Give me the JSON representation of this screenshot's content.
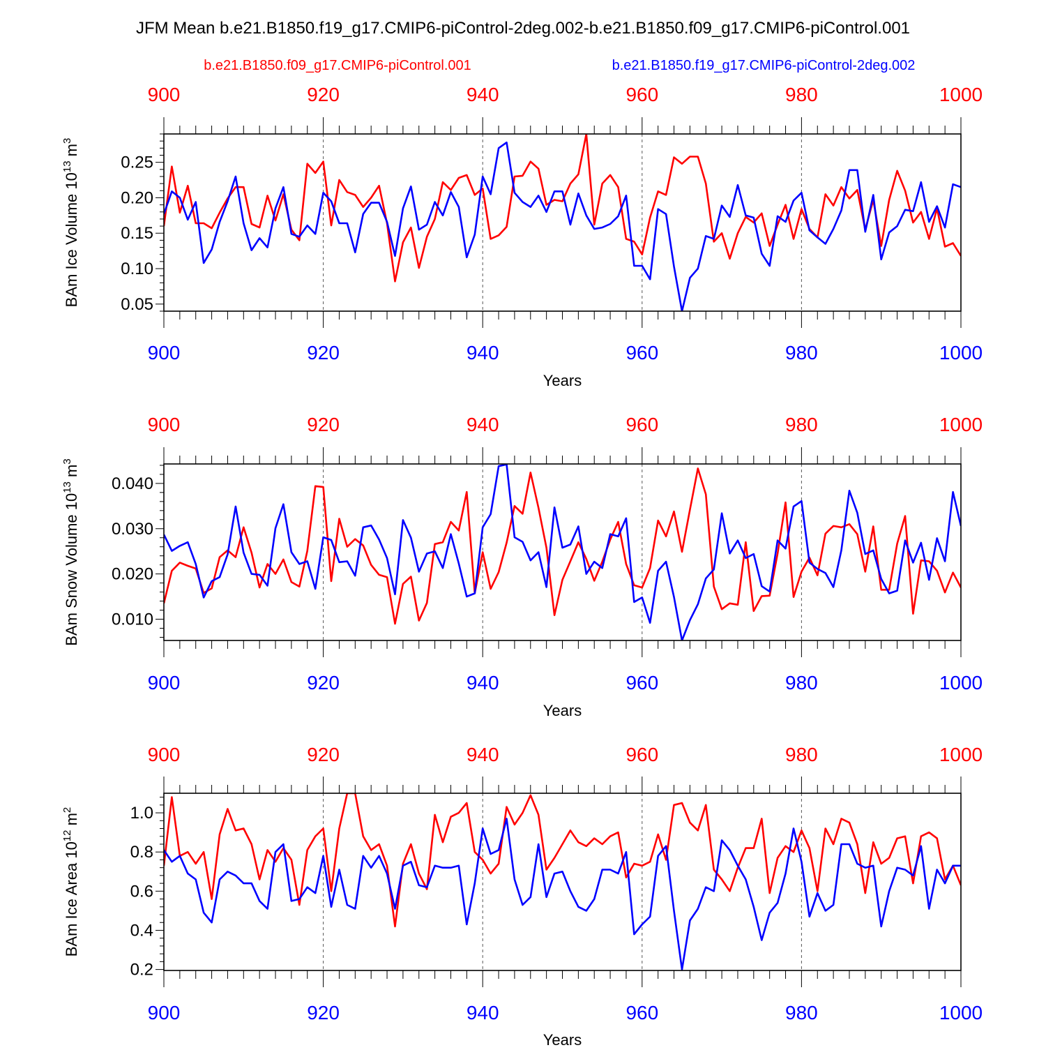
{
  "title": "JFM Mean b.e21.B1850.f19_g17.CMIP6-piControl-2deg.002-b.e21.B1850.f09_g17.CMIP6-piControl.001",
  "legend": {
    "red": "b.e21.B1850.f09_g17.CMIP6-piControl.001",
    "blue": "b.e21.B1850.f19_g17.CMIP6-piControl-2deg.002"
  },
  "colors": {
    "red": "#ff0000",
    "blue": "#0000ff",
    "axis": "#000000",
    "grid": "#555555"
  },
  "chart_data": [
    {
      "type": "line",
      "ylabel": "BAm Ice Volume",
      "units": "10^13 m^3",
      "ylabel_unit_base": "10",
      "ylabel_unit_exp": "13",
      "ylabel_unit_name": "m",
      "ylabel_unit_pow": "3",
      "xlabel": "Years",
      "xlim": [
        900,
        1000
      ],
      "ylim": [
        0.04,
        0.29
      ],
      "yticks": [
        0.05,
        0.1,
        0.15,
        0.2,
        0.25
      ],
      "ytick_labels": [
        "0.05",
        "0.10",
        "0.15",
        "0.20",
        "0.25"
      ],
      "xticks": [
        900,
        920,
        940,
        960,
        980,
        1000
      ],
      "xtick_labels": [
        "900",
        "920",
        "940",
        "960",
        "980",
        "1000"
      ],
      "x_start": 900,
      "series": [
        {
          "name": "b.e21.B1850.f09_g17.CMIP6-piControl.001",
          "color": "red",
          "values": [
            0.16,
            0.244,
            0.179,
            0.217,
            0.164,
            0.164,
            0.157,
            0.179,
            0.199,
            0.215,
            0.215,
            0.163,
            0.158,
            0.203,
            0.168,
            0.205,
            0.155,
            0.14,
            0.248,
            0.235,
            0.251,
            0.161,
            0.225,
            0.208,
            0.204,
            0.187,
            0.2,
            0.217,
            0.164,
            0.082,
            0.137,
            0.158,
            0.101,
            0.145,
            0.17,
            0.222,
            0.211,
            0.228,
            0.232,
            0.204,
            0.213,
            0.142,
            0.147,
            0.159,
            0.23,
            0.231,
            0.251,
            0.241,
            0.19,
            0.197,
            0.195,
            0.22,
            0.233,
            0.29,
            0.162,
            0.22,
            0.232,
            0.215,
            0.142,
            0.138,
            0.12,
            0.172,
            0.209,
            0.204,
            0.257,
            0.248,
            0.258,
            0.258,
            0.22,
            0.138,
            0.15,
            0.114,
            0.15,
            0.173,
            0.165,
            0.178,
            0.132,
            0.162,
            0.19,
            0.142,
            0.184,
            0.156,
            0.144,
            0.205,
            0.189,
            0.215,
            0.199,
            0.211,
            0.155,
            0.197,
            0.132,
            0.197,
            0.238,
            0.21,
            0.165,
            0.18,
            0.142,
            0.185,
            0.131,
            0.136,
            0.118
          ]
        },
        {
          "name": "b.e21.B1850.f19_g17.CMIP6-piControl-2deg.002",
          "color": "blue",
          "values": [
            0.177,
            0.209,
            0.2,
            0.169,
            0.194,
            0.108,
            0.127,
            0.166,
            0.195,
            0.23,
            0.164,
            0.126,
            0.143,
            0.13,
            0.185,
            0.215,
            0.149,
            0.145,
            0.161,
            0.149,
            0.207,
            0.195,
            0.164,
            0.164,
            0.123,
            0.177,
            0.193,
            0.193,
            0.166,
            0.118,
            0.185,
            0.216,
            0.155,
            0.162,
            0.194,
            0.175,
            0.208,
            0.187,
            0.116,
            0.148,
            0.23,
            0.205,
            0.27,
            0.278,
            0.207,
            0.194,
            0.187,
            0.203,
            0.18,
            0.209,
            0.209,
            0.162,
            0.206,
            0.175,
            0.156,
            0.158,
            0.163,
            0.174,
            0.203,
            0.104,
            0.104,
            0.085,
            0.184,
            0.177,
            0.103,
            0.04,
            0.087,
            0.1,
            0.146,
            0.142,
            0.189,
            0.173,
            0.218,
            0.175,
            0.172,
            0.121,
            0.104,
            0.174,
            0.166,
            0.196,
            0.207,
            0.154,
            0.144,
            0.135,
            0.156,
            0.182,
            0.239,
            0.239,
            0.152,
            0.204,
            0.113,
            0.151,
            0.16,
            0.183,
            0.181,
            0.222,
            0.166,
            0.188,
            0.158,
            0.219,
            0.215
          ]
        }
      ]
    },
    {
      "type": "line",
      "ylabel": "BAm Snow Volume",
      "units": "10^13 m^3",
      "ylabel_unit_base": "10",
      "ylabel_unit_exp": "13",
      "ylabel_unit_name": "m",
      "ylabel_unit_pow": "3",
      "xlabel": "Years",
      "xlim": [
        900,
        1000
      ],
      "ylim": [
        0.0053,
        0.0443
      ],
      "yticks": [
        0.01,
        0.02,
        0.03,
        0.04
      ],
      "ytick_labels": [
        "0.010",
        "0.020",
        "0.030",
        "0.040"
      ],
      "xticks": [
        900,
        920,
        940,
        960,
        980,
        1000
      ],
      "xtick_labels": [
        "900",
        "920",
        "940",
        "960",
        "980",
        "1000"
      ],
      "x_start": 900,
      "series": [
        {
          "name": "b.e21.B1850.f09_g17.CMIP6-piControl.001",
          "color": "red",
          "values": [
            0.0135,
            0.0207,
            0.0225,
            0.0218,
            0.0212,
            0.0158,
            0.0168,
            0.0237,
            0.0252,
            0.0237,
            0.0303,
            0.0247,
            0.017,
            0.0222,
            0.02,
            0.0232,
            0.0182,
            0.0172,
            0.0251,
            0.0394,
            0.0392,
            0.0184,
            0.0322,
            0.026,
            0.0277,
            0.0263,
            0.022,
            0.0198,
            0.0193,
            0.009,
            0.0178,
            0.0194,
            0.0097,
            0.0136,
            0.0266,
            0.027,
            0.0315,
            0.0296,
            0.0381,
            0.0157,
            0.0248,
            0.0167,
            0.0204,
            0.0269,
            0.035,
            0.0333,
            0.0424,
            0.0346,
            0.0258,
            0.0109,
            0.0187,
            0.0228,
            0.027,
            0.0233,
            0.0185,
            0.0227,
            0.0276,
            0.0315,
            0.0222,
            0.0175,
            0.017,
            0.0213,
            0.0318,
            0.0283,
            0.0338,
            0.0249,
            0.0342,
            0.0433,
            0.0376,
            0.0172,
            0.0122,
            0.0135,
            0.0132,
            0.027,
            0.0118,
            0.0151,
            0.0152,
            0.0245,
            0.0358,
            0.0149,
            0.0205,
            0.0236,
            0.0197,
            0.0289,
            0.0306,
            0.0303,
            0.031,
            0.0288,
            0.0205,
            0.0305,
            0.0165,
            0.0165,
            0.0267,
            0.0328,
            0.0112,
            0.023,
            0.0228,
            0.0207,
            0.0159,
            0.0203,
            0.017
          ]
        },
        {
          "name": "b.e21.B1850.f19_g17.CMIP6-piControl-2deg.002",
          "color": "blue",
          "values": [
            0.0287,
            0.0251,
            0.0262,
            0.027,
            0.0222,
            0.0148,
            0.0184,
            0.0193,
            0.0243,
            0.0349,
            0.0247,
            0.02,
            0.0198,
            0.0174,
            0.0301,
            0.0354,
            0.0248,
            0.0222,
            0.0228,
            0.0167,
            0.0281,
            0.0275,
            0.0226,
            0.0228,
            0.0196,
            0.0303,
            0.0307,
            0.0276,
            0.0235,
            0.0155,
            0.0319,
            0.028,
            0.0205,
            0.0245,
            0.025,
            0.0213,
            0.0288,
            0.0223,
            0.015,
            0.0157,
            0.0303,
            0.0332,
            0.0438,
            0.0442,
            0.0281,
            0.0271,
            0.023,
            0.0248,
            0.0171,
            0.0347,
            0.0258,
            0.0265,
            0.0305,
            0.02,
            0.0227,
            0.0213,
            0.0288,
            0.0283,
            0.0323,
            0.0138,
            0.0148,
            0.0092,
            0.0207,
            0.0227,
            0.0149,
            0.0053,
            0.0098,
            0.0133,
            0.019,
            0.021,
            0.0334,
            0.0245,
            0.0274,
            0.0235,
            0.0244,
            0.0173,
            0.0161,
            0.0274,
            0.0256,
            0.0349,
            0.0361,
            0.0225,
            0.0211,
            0.0202,
            0.0171,
            0.0252,
            0.0384,
            0.0335,
            0.0244,
            0.0252,
            0.0189,
            0.0157,
            0.0163,
            0.0274,
            0.0225,
            0.0269,
            0.0187,
            0.0279,
            0.0228,
            0.0381,
            0.0306
          ]
        }
      ]
    },
    {
      "type": "line",
      "ylabel": "BAm Ice Area",
      "units": "10^12 m^2",
      "ylabel_unit_base": "10",
      "ylabel_unit_exp": "12",
      "ylabel_unit_name": "m",
      "ylabel_unit_pow": "2",
      "xlabel": "Years",
      "xlim": [
        900,
        1000
      ],
      "ylim": [
        0.195,
        1.1
      ],
      "yticks": [
        0.2,
        0.4,
        0.6,
        0.8,
        1.0
      ],
      "ytick_labels": [
        "0.2",
        "0.4",
        "0.6",
        "0.8",
        "1.0"
      ],
      "xticks": [
        900,
        920,
        940,
        960,
        980,
        1000
      ],
      "xtick_labels": [
        "900",
        "920",
        "940",
        "960",
        "980",
        "1000"
      ],
      "x_start": 900,
      "series": [
        {
          "name": "b.e21.B1850.f09_g17.CMIP6-piControl.001",
          "color": "red",
          "values": [
            0.73,
            1.08,
            0.78,
            0.8,
            0.74,
            0.8,
            0.56,
            0.89,
            1.02,
            0.91,
            0.92,
            0.84,
            0.66,
            0.81,
            0.75,
            0.82,
            0.76,
            0.53,
            0.81,
            0.88,
            0.92,
            0.6,
            0.92,
            1.1,
            1.1,
            0.88,
            0.81,
            0.84,
            0.73,
            0.42,
            0.74,
            0.84,
            0.69,
            0.61,
            0.99,
            0.85,
            0.98,
            1.0,
            1.05,
            0.8,
            0.76,
            0.69,
            0.74,
            1.03,
            0.94,
            1.0,
            1.09,
            0.99,
            0.71,
            0.77,
            0.84,
            0.91,
            0.85,
            0.83,
            0.87,
            0.84,
            0.88,
            0.9,
            0.67,
            0.74,
            0.73,
            0.75,
            0.89,
            0.76,
            1.04,
            1.05,
            0.95,
            0.91,
            1.04,
            0.71,
            0.66,
            0.6,
            0.72,
            0.82,
            0.82,
            0.97,
            0.59,
            0.77,
            0.83,
            0.8,
            0.91,
            0.82,
            0.6,
            0.92,
            0.84,
            0.97,
            0.95,
            0.84,
            0.59,
            0.85,
            0.74,
            0.77,
            0.87,
            0.88,
            0.64,
            0.88,
            0.9,
            0.87,
            0.66,
            0.73,
            0.63
          ]
        },
        {
          "name": "b.e21.B1850.f19_g17.CMIP6-piControl-2deg.002",
          "color": "blue",
          "values": [
            0.81,
            0.75,
            0.78,
            0.69,
            0.66,
            0.49,
            0.44,
            0.66,
            0.7,
            0.68,
            0.64,
            0.64,
            0.55,
            0.51,
            0.8,
            0.84,
            0.55,
            0.56,
            0.62,
            0.59,
            0.78,
            0.52,
            0.71,
            0.53,
            0.51,
            0.78,
            0.72,
            0.78,
            0.69,
            0.51,
            0.73,
            0.75,
            0.63,
            0.62,
            0.73,
            0.72,
            0.72,
            0.73,
            0.43,
            0.64,
            0.92,
            0.79,
            0.81,
            0.97,
            0.66,
            0.53,
            0.57,
            0.84,
            0.57,
            0.69,
            0.7,
            0.6,
            0.52,
            0.5,
            0.56,
            0.71,
            0.71,
            0.69,
            0.8,
            0.38,
            0.43,
            0.47,
            0.78,
            0.83,
            0.5,
            0.2,
            0.45,
            0.51,
            0.62,
            0.6,
            0.86,
            0.81,
            0.73,
            0.66,
            0.52,
            0.35,
            0.49,
            0.54,
            0.69,
            0.92,
            0.75,
            0.47,
            0.59,
            0.5,
            0.53,
            0.84,
            0.84,
            0.74,
            0.72,
            0.73,
            0.42,
            0.6,
            0.72,
            0.71,
            0.68,
            0.83,
            0.51,
            0.71,
            0.64,
            0.73,
            0.73
          ]
        }
      ]
    }
  ]
}
